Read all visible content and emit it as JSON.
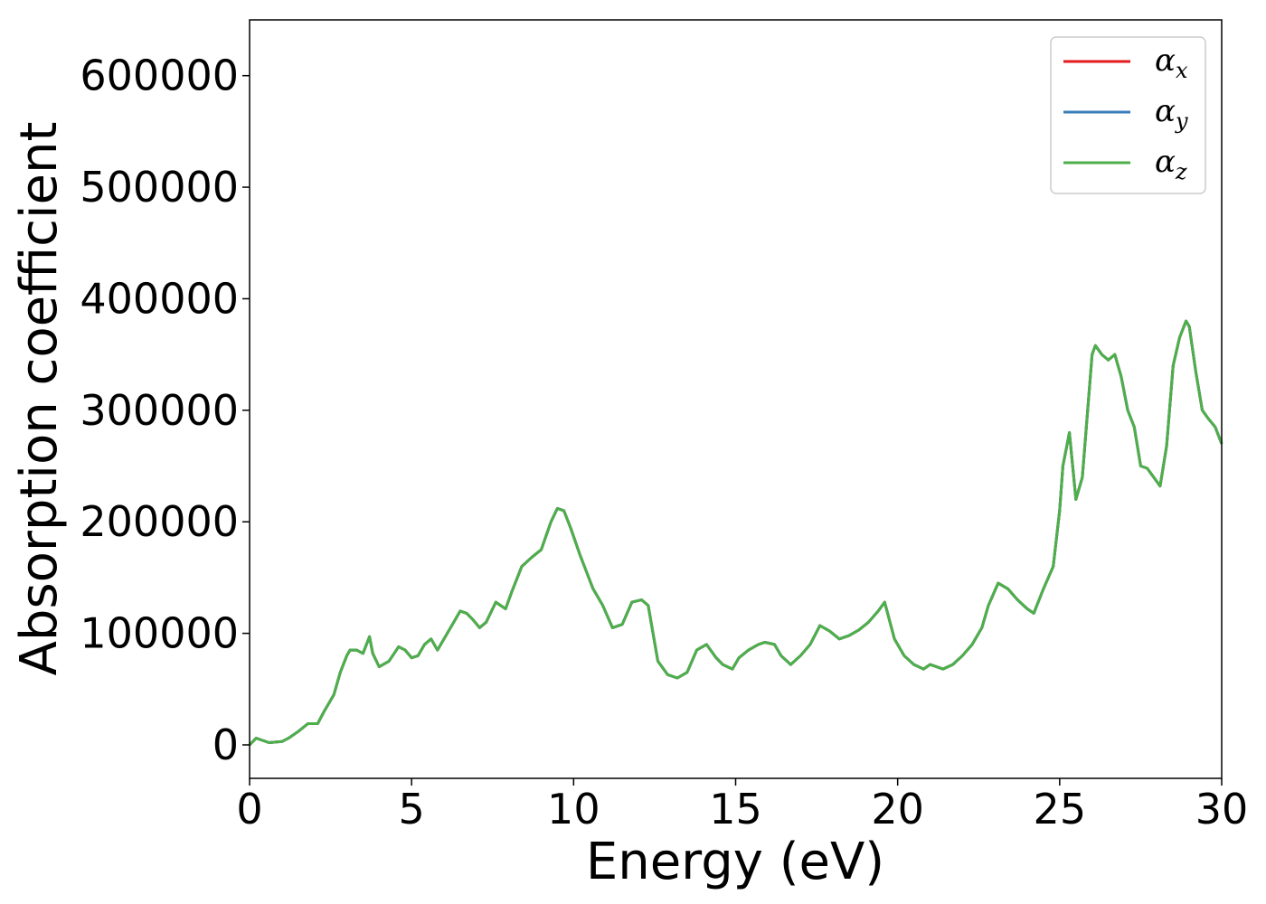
{
  "chart_data": {
    "type": "line",
    "xlabel": "Energy (eV)",
    "ylabel": "Absorption coefficient",
    "xlim": [
      0,
      30
    ],
    "ylim": [
      -30000,
      650000
    ],
    "xticks": [
      "0",
      "5",
      "10",
      "15",
      "20",
      "25",
      "30"
    ],
    "yticks": [
      "0",
      "100000",
      "200000",
      "300000",
      "400000",
      "500000",
      "600000"
    ],
    "grid": false,
    "legend_position": "top-right",
    "legend": [
      {
        "base": "α",
        "sub": "x",
        "color": "#e41a1c"
      },
      {
        "base": "α",
        "sub": "y",
        "color": "#377eb8"
      },
      {
        "base": "α",
        "sub": "z",
        "color": "#4daf4a"
      }
    ],
    "series": [
      {
        "name": "αx",
        "color": "#e41a1c"
      },
      {
        "name": "αy",
        "color": "#377eb8"
      },
      {
        "name": "αz",
        "color": "#4daf4a"
      }
    ],
    "x": [
      0.0,
      0.2,
      0.4,
      0.6,
      1.0,
      1.2,
      1.5,
      1.8,
      2.1,
      2.3,
      2.6,
      2.8,
      3.0,
      3.1,
      3.3,
      3.5,
      3.7,
      3.8,
      4.0,
      4.3,
      4.6,
      4.8,
      5.0,
      5.2,
      5.4,
      5.6,
      5.8,
      6.0,
      6.3,
      6.5,
      6.7,
      6.9,
      7.1,
      7.3,
      7.6,
      7.9,
      8.1,
      8.4,
      8.7,
      9.0,
      9.3,
      9.5,
      9.7,
      9.9,
      10.2,
      10.6,
      10.9,
      11.2,
      11.5,
      11.8,
      12.1,
      12.3,
      12.6,
      12.9,
      13.2,
      13.5,
      13.8,
      14.1,
      14.4,
      14.6,
      14.9,
      15.1,
      15.4,
      15.7,
      15.9,
      16.2,
      16.4,
      16.7,
      17.0,
      17.3,
      17.6,
      17.9,
      18.2,
      18.5,
      18.8,
      19.1,
      19.4,
      19.6,
      19.9,
      20.2,
      20.5,
      20.8,
      21.0,
      21.2,
      21.4,
      21.7,
      22.0,
      22.3,
      22.6,
      22.8,
      23.1,
      23.4,
      23.7,
      24.0,
      24.2,
      24.5,
      24.8,
      25.0,
      25.1,
      25.3,
      25.5,
      25.7,
      26.0,
      26.1,
      26.3,
      26.5,
      26.7,
      26.9,
      27.1,
      27.3,
      27.5,
      27.7,
      27.9,
      28.1,
      28.3,
      28.5,
      28.7,
      28.9,
      29.0,
      29.2,
      29.4,
      29.6,
      29.8,
      30.0
    ],
    "y": [
      0,
      6000,
      4000,
      2000,
      3000,
      6000,
      12000,
      19000,
      19000,
      30000,
      45000,
      65000,
      80000,
      85000,
      85000,
      82000,
      97000,
      82000,
      70000,
      75000,
      88000,
      85000,
      78000,
      80000,
      90000,
      95000,
      85000,
      95000,
      110000,
      120000,
      118000,
      112000,
      105000,
      110000,
      128000,
      122000,
      138000,
      160000,
      168000,
      175000,
      200000,
      212000,
      210000,
      195000,
      170000,
      140000,
      125000,
      105000,
      108000,
      128000,
      130000,
      125000,
      75000,
      63000,
      60000,
      65000,
      85000,
      90000,
      78000,
      72000,
      68000,
      78000,
      85000,
      90000,
      92000,
      90000,
      80000,
      72000,
      80000,
      90000,
      107000,
      102000,
      95000,
      98000,
      103000,
      110000,
      120000,
      128000,
      95000,
      80000,
      72000,
      68000,
      72000,
      70000,
      68000,
      72000,
      80000,
      90000,
      105000,
      125000,
      145000,
      140000,
      130000,
      122000,
      118000,
      140000,
      160000,
      210000,
      250000,
      280000,
      220000,
      240000,
      350000,
      358000,
      350000,
      345000,
      350000,
      330000,
      300000,
      285000,
      250000,
      248000,
      240000,
      232000,
      268000,
      340000,
      365000,
      380000,
      375000,
      335000,
      300000,
      292000,
      285000,
      270000
    ]
  }
}
